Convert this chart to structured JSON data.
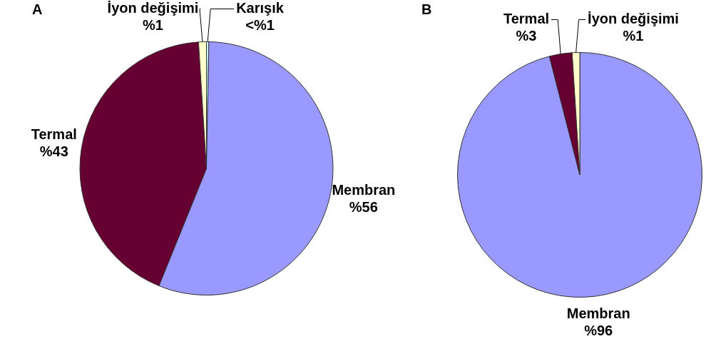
{
  "chart_data": [
    {
      "type": "pie",
      "title": "A",
      "categories": [
        "Karışık",
        "Membran",
        "Termal",
        "İyon değişimi"
      ],
      "values": [
        0.3,
        56,
        43,
        1
      ],
      "value_labels": [
        "<%1",
        "%56",
        "%43",
        "%1"
      ],
      "colors": [
        "#ccffff",
        "#9999ff",
        "#660033",
        "#ffffcc"
      ]
    },
    {
      "type": "pie",
      "title": "B",
      "categories": [
        "Membran",
        "Termal",
        "İyon değişimi"
      ],
      "values": [
        96,
        3,
        1
      ],
      "value_labels": [
        "%96",
        "%3",
        "%1"
      ],
      "colors": [
        "#9999ff",
        "#660033",
        "#ffffcc"
      ]
    }
  ]
}
